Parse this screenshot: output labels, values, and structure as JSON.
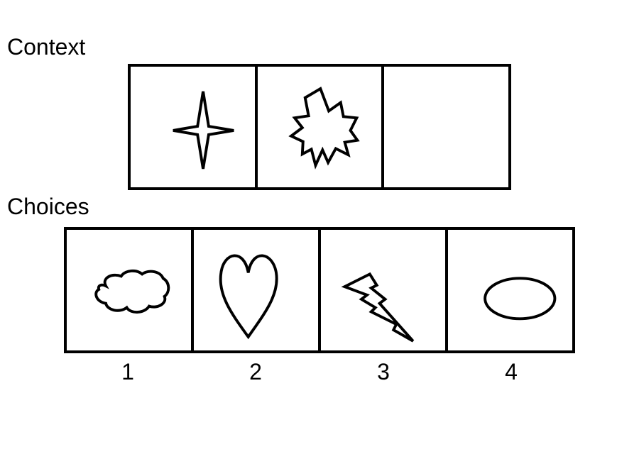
{
  "context": {
    "label": "Context",
    "cells": [
      {
        "icon": "four-point-star-icon"
      },
      {
        "icon": "starburst-icon"
      },
      {
        "icon": "empty"
      }
    ]
  },
  "choices": {
    "label": "Choices",
    "options": [
      {
        "number": "1",
        "icon": "cloud-icon"
      },
      {
        "number": "2",
        "icon": "heart-icon"
      },
      {
        "number": "3",
        "icon": "lightning-bolt-icon"
      },
      {
        "number": "4",
        "icon": "ellipse-icon"
      }
    ]
  }
}
